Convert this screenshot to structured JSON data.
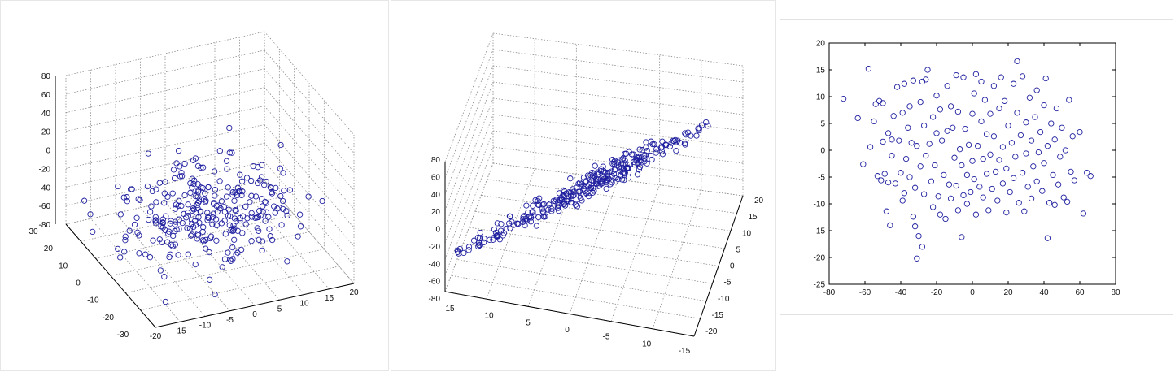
{
  "colors": {
    "marker": "#1f1fa0",
    "axis": "#000000",
    "grid": "#8c8c8c",
    "background": "#ffffff"
  },
  "chart_data": [
    {
      "type": "scatter",
      "projection": "3d",
      "title": "",
      "xlabel": "",
      "ylabel": "",
      "zlabel": "",
      "xlim": [
        -20,
        20
      ],
      "ylim": [
        -30,
        30
      ],
      "zlim": [
        -80,
        80
      ],
      "x_ticks": [
        "-20",
        "-15",
        "-10",
        "-5",
        "0",
        "5",
        "10",
        "15",
        "20"
      ],
      "y_ticks": [
        "-30",
        "-20",
        "-10",
        "0",
        "10",
        "20",
        "30"
      ],
      "z_ticks": [
        "-80",
        "-60",
        "-40",
        "-20",
        "0",
        "20",
        "40",
        "60",
        "80"
      ],
      "grid": true,
      "marker": "open-circle",
      "n_points": 300,
      "cluster_center": {
        "x": 0,
        "y": 0,
        "z": -35
      },
      "cluster_spread": {
        "x": 12,
        "y": 15,
        "z": 18
      }
    },
    {
      "type": "scatter",
      "projection": "3d",
      "title": "",
      "xlabel": "",
      "ylabel": "",
      "zlabel": "",
      "xlim": [
        -15,
        15
      ],
      "ylim": [
        -20,
        20
      ],
      "zlim": [
        -80,
        80
      ],
      "x_ticks": [
        "15",
        "10",
        "5",
        "0",
        "-5",
        "-10",
        "-15"
      ],
      "y_ticks": [
        "-20",
        "-15",
        "-10",
        "-5",
        "0",
        "5",
        "10",
        "15",
        "20"
      ],
      "z_ticks": [
        "-80",
        "-60",
        "-40",
        "-20",
        "0",
        "20",
        "40",
        "60",
        "80"
      ],
      "grid": true,
      "marker": "open-circle",
      "n_points": 300,
      "note_trend": "points lie along a thin plane viewed edge-on"
    },
    {
      "type": "scatter",
      "title": "",
      "xlabel": "",
      "ylabel": "",
      "xlim": [
        -80,
        80
      ],
      "ylim": [
        -25,
        20
      ],
      "x_ticks": [
        "-80",
        "-60",
        "-40",
        "-20",
        "0",
        "20",
        "40",
        "60",
        "80"
      ],
      "y_ticks": [
        "-25",
        "-20",
        "-15",
        "-10",
        "-5",
        "0",
        "5",
        "10",
        "15",
        "20"
      ],
      "grid": false,
      "marker": "open-circle",
      "points": [
        [
          -72,
          9.6
        ],
        [
          -64,
          6
        ],
        [
          -61,
          -2.6
        ],
        [
          -58,
          15.2
        ],
        [
          -57,
          0.6
        ],
        [
          -55,
          5.4
        ],
        [
          -54,
          8.6
        ],
        [
          -53,
          -4.8
        ],
        [
          -52,
          9.2
        ],
        [
          -51,
          -5.6
        ],
        [
          -50,
          8.8
        ],
        [
          -50,
          1.6
        ],
        [
          -49,
          -4.4
        ],
        [
          -48,
          -11.4
        ],
        [
          -47,
          3.2
        ],
        [
          -47,
          -6
        ],
        [
          -46,
          -14
        ],
        [
          -45,
          2
        ],
        [
          -45,
          -1
        ],
        [
          -44,
          6.4
        ],
        [
          -43,
          -6.2
        ],
        [
          -42,
          11.8
        ],
        [
          -41,
          1.8
        ],
        [
          -40,
          -4.2
        ],
        [
          -39,
          7
        ],
        [
          -39,
          -9.4
        ],
        [
          -38,
          12.4
        ],
        [
          -38,
          -8
        ],
        [
          -37,
          -1.6
        ],
        [
          -36,
          4.2
        ],
        [
          -35,
          8.2
        ],
        [
          -35,
          -5
        ],
        [
          -34,
          1.4
        ],
        [
          -33,
          13
        ],
        [
          -33,
          -12.4
        ],
        [
          -32,
          -7
        ],
        [
          -32,
          -14.2
        ],
        [
          -31,
          0.8
        ],
        [
          -31,
          -20.2
        ],
        [
          -30,
          -16
        ],
        [
          -29,
          9
        ],
        [
          -29,
          -3
        ],
        [
          -28,
          12.8
        ],
        [
          -28,
          -18
        ],
        [
          -27,
          4.6
        ],
        [
          -27,
          -8.2
        ],
        [
          -26,
          13.2
        ],
        [
          -26,
          -1
        ],
        [
          -25,
          15
        ],
        [
          -24,
          1.2
        ],
        [
          -23,
          -5.8
        ],
        [
          -22,
          6.2
        ],
        [
          -22,
          -10.6
        ],
        [
          -21,
          -2.8
        ],
        [
          -20,
          10.2
        ],
        [
          -20,
          3.2
        ],
        [
          -19,
          -8.6
        ],
        [
          -18,
          7.6
        ],
        [
          -18,
          -12
        ],
        [
          -17,
          1.8
        ],
        [
          -16,
          -4.6
        ],
        [
          -15,
          -12.8
        ],
        [
          -14,
          12
        ],
        [
          -14,
          3.6
        ],
        [
          -13,
          -6.4
        ],
        [
          -12,
          8.2
        ],
        [
          -12,
          -9
        ],
        [
          -11,
          4.2
        ],
        [
          -10,
          -1.4
        ],
        [
          -9,
          14
        ],
        [
          -9,
          -6.6
        ],
        [
          -8,
          7.2
        ],
        [
          -8,
          -11.2
        ],
        [
          -7,
          0.2
        ],
        [
          -6,
          -16.2
        ],
        [
          -6,
          -2.8
        ],
        [
          -5,
          13.6
        ],
        [
          -5,
          -8.4
        ],
        [
          -4,
          4
        ],
        [
          -3,
          -4.6
        ],
        [
          -3,
          -10
        ],
        [
          -2,
          1
        ],
        [
          -1,
          -7.8
        ],
        [
          0,
          6.8
        ],
        [
          0,
          -2
        ],
        [
          1,
          10.6
        ],
        [
          1,
          -5.4
        ],
        [
          2,
          14.2
        ],
        [
          2,
          -12
        ],
        [
          3,
          0.8
        ],
        [
          4,
          -6.8
        ],
        [
          5,
          12.8
        ],
        [
          5,
          5.4
        ],
        [
          6,
          -1.6
        ],
        [
          6,
          -8.8
        ],
        [
          7,
          9.4
        ],
        [
          8,
          3
        ],
        [
          8,
          -4.4
        ],
        [
          9,
          -11.2
        ],
        [
          10,
          6.8
        ],
        [
          10,
          -0.8
        ],
        [
          11,
          -7.2
        ],
        [
          12,
          12
        ],
        [
          12,
          2.6
        ],
        [
          13,
          -4
        ],
        [
          14,
          -9.4
        ],
        [
          15,
          7.8
        ],
        [
          15,
          -1.8
        ],
        [
          16,
          13.6
        ],
        [
          17,
          -6.2
        ],
        [
          17,
          0.6
        ],
        [
          18,
          9.2
        ],
        [
          19,
          -3.4
        ],
        [
          19,
          -11.6
        ],
        [
          20,
          4.6
        ],
        [
          21,
          -7.8
        ],
        [
          22,
          1.4
        ],
        [
          23,
          12.4
        ],
        [
          23,
          -5.2
        ],
        [
          24,
          -1.2
        ],
        [
          25,
          16.6
        ],
        [
          25,
          7
        ],
        [
          26,
          -9.8
        ],
        [
          27,
          2.8
        ],
        [
          28,
          -4.2
        ],
        [
          28,
          13.8
        ],
        [
          29,
          -11.4
        ],
        [
          30,
          5.2
        ],
        [
          30,
          -0.6
        ],
        [
          31,
          -6.8
        ],
        [
          32,
          9.8
        ],
        [
          33,
          1.8
        ],
        [
          33,
          -9
        ],
        [
          34,
          -3
        ],
        [
          35,
          6.2
        ],
        [
          36,
          11.2
        ],
        [
          36,
          -5.8
        ],
        [
          37,
          -0.4
        ],
        [
          38,
          3.4
        ],
        [
          39,
          -7.6
        ],
        [
          40,
          8.4
        ],
        [
          40,
          -2.4
        ],
        [
          41,
          13.4
        ],
        [
          42,
          -16.4
        ],
        [
          42,
          0.8
        ],
        [
          43,
          -9.8
        ],
        [
          44,
          5
        ],
        [
          45,
          -4.6
        ],
        [
          46,
          2
        ],
        [
          46,
          -10.2
        ],
        [
          47,
          7.8
        ],
        [
          48,
          -6.4
        ],
        [
          49,
          -1.2
        ],
        [
          50,
          4.2
        ],
        [
          51,
          -8.8
        ],
        [
          52,
          0
        ],
        [
          53,
          -9.6
        ],
        [
          54,
          9.4
        ],
        [
          55,
          -4
        ],
        [
          56,
          2.6
        ],
        [
          57,
          -5.6
        ],
        [
          60,
          3.4
        ],
        [
          62,
          -11.8
        ],
        [
          64,
          -4.2
        ],
        [
          66,
          -4.8
        ]
      ]
    }
  ]
}
